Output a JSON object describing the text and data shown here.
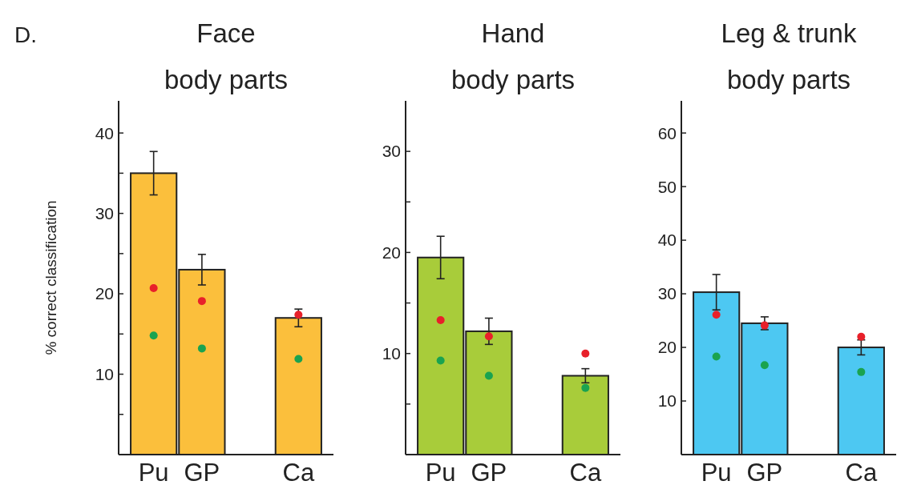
{
  "chart_data": [
    {
      "type": "bar",
      "title": "Face",
      "subtitle": "body parts",
      "ylabel": "% correct classification",
      "annotations": [
        "D."
      ],
      "categories": [
        "Pu",
        "GP",
        null,
        "Ca"
      ],
      "ylim": [
        0,
        44
      ],
      "yticks": [
        {
          "value": 5,
          "label": null
        },
        10,
        {
          "value": 15,
          "label": null
        },
        20,
        {
          "value": 25,
          "label": null
        },
        30,
        {
          "value": 35,
          "label": null
        },
        40
      ],
      "grid": false,
      "marker": "circle",
      "series": [
        {
          "color": "#fbbf3c",
          "values": [
            35,
            23,
            null,
            17
          ],
          "errors": [
            2.7,
            1.9,
            null,
            1.1
          ]
        },
        {
          "type": "scatter",
          "color": "#e8202a",
          "x": [
            "Pu",
            "GP",
            "Ca"
          ],
          "values": [
            20.7,
            19.1,
            17.4
          ]
        },
        {
          "type": "scatter",
          "color": "#1aa350",
          "x": [
            "Pu",
            "GP",
            "Ca"
          ],
          "values": [
            14.8,
            13.2,
            11.9
          ]
        }
      ]
    },
    {
      "type": "bar",
      "title": "Hand",
      "subtitle": "body parts",
      "categories": [
        "Pu",
        "GP",
        null,
        "Ca"
      ],
      "ylim": [
        0,
        35
      ],
      "yticks": [
        {
          "value": 5,
          "label": null
        },
        10,
        {
          "value": 15,
          "label": null
        },
        20,
        {
          "value": 25,
          "label": null
        },
        30
      ],
      "grid": false,
      "marker": "circle",
      "series": [
        {
          "color": "#a8cc3a",
          "values": [
            19.5,
            12.2,
            null,
            7.8
          ],
          "errors": [
            2.1,
            1.3,
            null,
            0.7
          ]
        },
        {
          "type": "scatter",
          "color": "#e8202a",
          "x": [
            "Pu",
            "GP",
            "Ca"
          ],
          "values": [
            13.3,
            11.7,
            10
          ]
        },
        {
          "type": "scatter",
          "color": "#1aa350",
          "x": [
            "Pu",
            "GP",
            "Ca"
          ],
          "values": [
            9.3,
            7.8,
            6.6
          ]
        }
      ]
    },
    {
      "type": "bar",
      "title": "Leg & trunk",
      "subtitle": "body parts",
      "categories": [
        "Pu",
        "GP",
        null,
        "Ca"
      ],
      "ylim": [
        0,
        66
      ],
      "yticks": [
        10,
        20,
        30,
        40,
        50,
        60
      ],
      "grid": false,
      "marker": "circle",
      "series": [
        {
          "color": "#4dc8f2",
          "values": [
            30.3,
            24.5,
            null,
            20
          ],
          "errors": [
            3.3,
            1.2,
            null,
            1.4
          ]
        },
        {
          "type": "scatter",
          "color": "#e8202a",
          "x": [
            "Pu",
            "GP",
            "Ca"
          ],
          "values": [
            26.1,
            24.1,
            22
          ]
        },
        {
          "type": "scatter",
          "color": "#1aa350",
          "x": [
            "Pu",
            "GP",
            "Ca"
          ],
          "values": [
            18.3,
            16.7,
            15.4
          ]
        }
      ]
    }
  ]
}
